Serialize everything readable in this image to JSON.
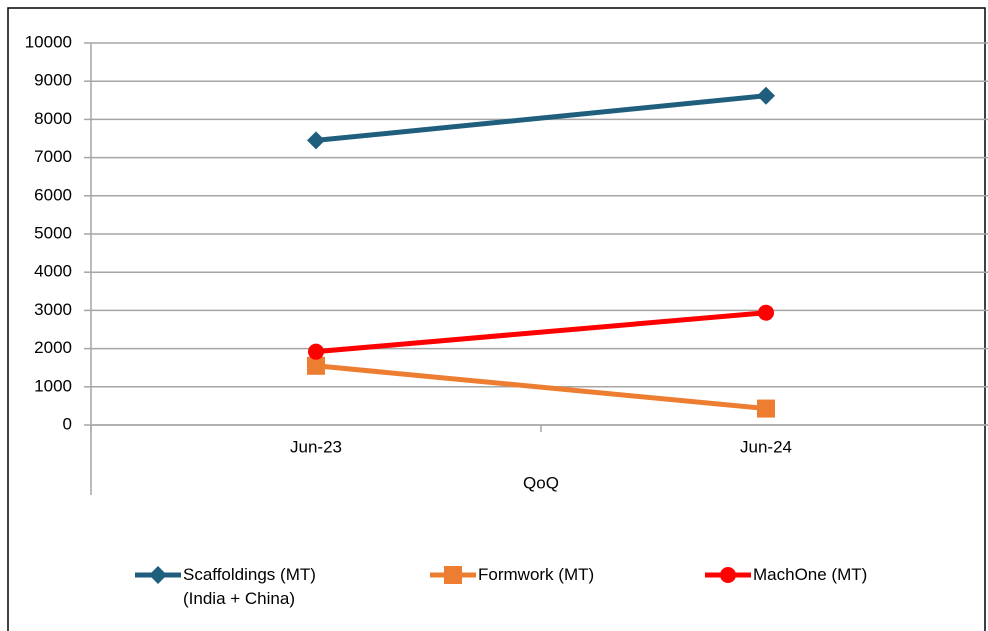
{
  "chart_data": {
    "type": "line",
    "categories": [
      "Jun-23",
      "Jun-24"
    ],
    "x_label": "QoQ",
    "series": [
      {
        "name": "Scaffoldings (MT) (India + China)",
        "color": "#1f5f7d",
        "marker": "diamond",
        "values": [
          7450,
          8620
        ]
      },
      {
        "name": "Formwork (MT)",
        "color": "#ed7d31",
        "marker": "square",
        "values": [
          1550,
          430
        ]
      },
      {
        "name": "MachOne (MT)",
        "color": "#ff0000",
        "marker": "circle",
        "values": [
          1920,
          2940
        ]
      }
    ],
    "ylim": [
      0,
      10000
    ],
    "yticks": [
      0,
      1000,
      2000,
      3000,
      4000,
      5000,
      6000,
      7000,
      8000,
      9000,
      10000
    ],
    "grid": true,
    "legend": "bottom"
  }
}
